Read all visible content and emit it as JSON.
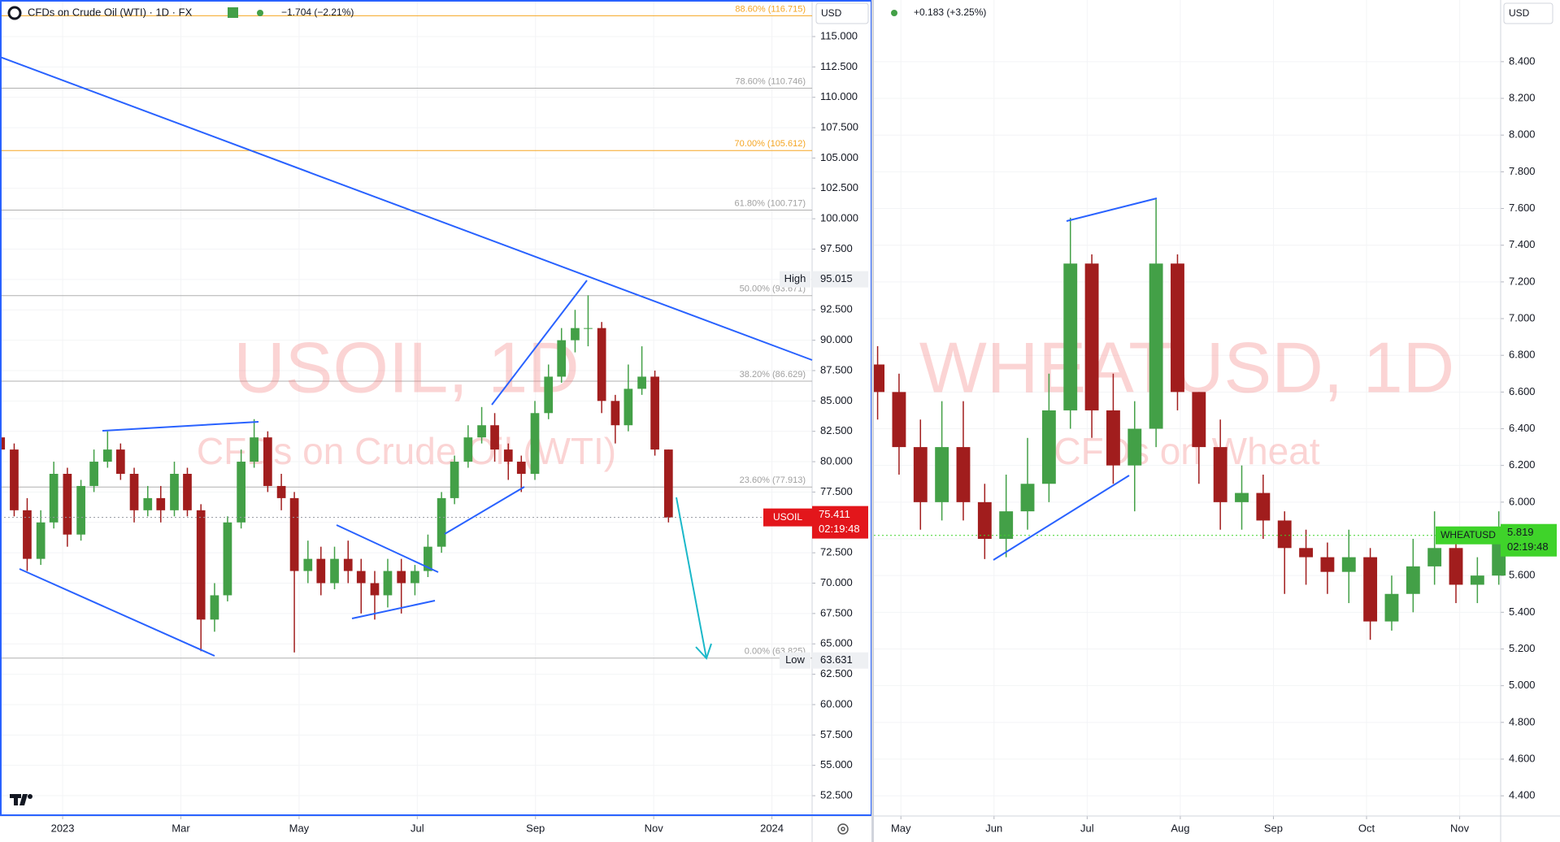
{
  "chart_data": [
    {
      "type": "candlestick",
      "symbol": "USOIL",
      "title": "CFDs on Crude Oil (WTI) · 1D · FX",
      "change": "−1.704 (−2.21%)",
      "currency": "USD",
      "watermark": "USOIL, 1D",
      "watermark_sub": "CFDs on Crude Oil (WTI)",
      "up_color": "#43a047",
      "down_color": "#a11d1d",
      "tag_color": "#e3161b",
      "grid": true,
      "xlim": [
        -1.06,
        12.68
      ],
      "ylim": [
        50.83,
        118.01
      ],
      "xticks": [
        {
          "value": 0,
          "label": "2023"
        },
        {
          "value": 2,
          "label": "Mar"
        },
        {
          "value": 4,
          "label": "May"
        },
        {
          "value": 6,
          "label": "Jul"
        },
        {
          "value": 8,
          "label": "Sep"
        },
        {
          "value": 10,
          "label": "Nov"
        },
        {
          "value": 12,
          "label": "2024"
        }
      ],
      "yticks": [
        {
          "value": 52.5,
          "label": "52.500"
        },
        {
          "value": 55,
          "label": "55.000"
        },
        {
          "value": 57.5,
          "label": "57.500"
        },
        {
          "value": 60,
          "label": "60.000"
        },
        {
          "value": 62.5,
          "label": "62.500"
        },
        {
          "value": 65,
          "label": "65.000"
        },
        {
          "value": 67.5,
          "label": "67.500"
        },
        {
          "value": 70,
          "label": "70.000"
        },
        {
          "value": 72.5,
          "label": "72.500"
        },
        {
          "value": 75,
          "label": "75.000"
        },
        {
          "value": 77.5,
          "label": "77.500"
        },
        {
          "value": 80,
          "label": "80.000"
        },
        {
          "value": 82.5,
          "label": "82.500"
        },
        {
          "value": 85,
          "label": "85.000"
        },
        {
          "value": 87.5,
          "label": "87.500"
        },
        {
          "value": 90,
          "label": "90.000"
        },
        {
          "value": 92.5,
          "label": "92.500"
        },
        {
          "value": 95,
          "label": "95.000"
        },
        {
          "value": 97.5,
          "label": "97.500"
        },
        {
          "value": 100,
          "label": "100.000"
        },
        {
          "value": 102.5,
          "label": "102.500"
        },
        {
          "value": 105,
          "label": "105.000"
        },
        {
          "value": 107.5,
          "label": "107.500"
        },
        {
          "value": 110,
          "label": "110.000"
        },
        {
          "value": 112.5,
          "label": "112.500"
        },
        {
          "value": 115,
          "label": "115.000"
        }
      ],
      "fib_levels": [
        {
          "value": 116.715,
          "label": "88.60% (116.715)",
          "color": "#f5a623"
        },
        {
          "value": 110.746,
          "label": "78.60% (110.746)",
          "color": "#b0b0b0"
        },
        {
          "value": 105.612,
          "label": "70.00% (105.612)",
          "color": "#f5a623"
        },
        {
          "value": 100.717,
          "label": "61.80% (100.717)",
          "color": "#b0b0b0"
        },
        {
          "value": 93.671,
          "label": "50.00% (93.671)",
          "color": "#b0b0b0"
        },
        {
          "value": 86.629,
          "label": "38.20% (86.629)",
          "color": "#b0b0b0"
        },
        {
          "value": 77.913,
          "label": "23.60% (77.913)",
          "color": "#b0b0b0"
        },
        {
          "value": 63.825,
          "label": "0.00% (63.825)",
          "color": "#b0b0b0"
        }
      ],
      "high_marker": {
        "label": "High",
        "value": 95.015
      },
      "low_marker": {
        "label": "Low",
        "value": 63.631
      },
      "last_price": 75.411,
      "countdown": "02:19:48",
      "x": [
        -1.05,
        -0.82,
        -0.6,
        -0.37,
        -0.15,
        0.08,
        0.31,
        0.53,
        0.76,
        0.98,
        1.21,
        1.44,
        1.66,
        1.89,
        2.11,
        2.34,
        2.57,
        2.79,
        3.02,
        3.24,
        3.47,
        3.7,
        3.92,
        4.15,
        4.37,
        4.6,
        4.83,
        5.05,
        5.28,
        5.5,
        5.73,
        5.96,
        6.18,
        6.41,
        6.63,
        6.86,
        7.09,
        7.31,
        7.54,
        7.76,
        7.99,
        8.22,
        8.44,
        8.67,
        8.89,
        9.12,
        9.35,
        9.57,
        9.8,
        10.02,
        10.25
      ],
      "open": [
        82,
        81,
        76,
        72,
        75,
        79,
        74,
        78,
        80,
        81,
        79,
        76,
        77,
        76,
        79,
        76,
        67,
        69,
        75,
        80,
        82,
        78,
        77,
        71,
        72,
        70,
        72,
        71,
        70,
        69,
        71,
        70,
        71,
        73,
        77,
        80,
        82,
        83,
        81,
        80,
        79,
        84,
        87,
        90,
        91,
        91,
        85,
        83,
        86,
        87,
        81
      ],
      "high": [
        83.5,
        81.5,
        77,
        76,
        80,
        79.5,
        78.5,
        81,
        82.5,
        81.5,
        79.5,
        78,
        78,
        80,
        79.5,
        76.5,
        70,
        75.5,
        81,
        83.5,
        82.5,
        79,
        77.5,
        73.5,
        73,
        73,
        73.5,
        72,
        71,
        72,
        72,
        71.5,
        74,
        77.5,
        80.5,
        83,
        84.5,
        84,
        81.5,
        80.5,
        85,
        88,
        91,
        92.5,
        93.7,
        91.5,
        85.5,
        88,
        89.5,
        87.5,
        81
      ],
      "low": [
        80,
        75.5,
        71,
        71.5,
        74.5,
        73,
        73.5,
        77.5,
        79.5,
        78.5,
        75,
        75.5,
        75,
        75.5,
        75.5,
        64.4,
        66,
        68.5,
        74.5,
        79.5,
        77.5,
        76,
        64.3,
        70,
        69,
        69.5,
        70,
        67.5,
        67,
        68,
        67.5,
        69,
        70.5,
        72.5,
        76.5,
        79.5,
        81.5,
        80,
        78.5,
        77.5,
        78.5,
        83.5,
        86.5,
        89,
        89.5,
        84,
        81.5,
        82.5,
        85.5,
        80.5,
        75
      ],
      "close": [
        81,
        76,
        72,
        75,
        79,
        74,
        78,
        80,
        81,
        79,
        76,
        77,
        76,
        79,
        76,
        67,
        69,
        75,
        80,
        82,
        78,
        77,
        71,
        72,
        70,
        72,
        71,
        70,
        69,
        71,
        70,
        71,
        73,
        77,
        80,
        82,
        83,
        81,
        80,
        79,
        84,
        87,
        90,
        91,
        91,
        85,
        83,
        86,
        87,
        81,
        75.4
      ]
    },
    {
      "type": "candlestick",
      "symbol": "WHEATUSD",
      "change": "+0.183 (+3.25%)",
      "currency": "USD",
      "watermark": "WHEATUSD, 1D",
      "watermark_sub": "CFDs on Wheat",
      "up_color": "#43a047",
      "down_color": "#a11d1d",
      "tag_color": "#3fd32a",
      "grid": true,
      "xlim": [
        3.71,
        10.44
      ],
      "ylim": [
        4.29,
        8.736
      ],
      "xticks": [
        {
          "value": 4,
          "label": "May"
        },
        {
          "value": 5,
          "label": "Jun"
        },
        {
          "value": 6,
          "label": "Jul"
        },
        {
          "value": 7,
          "label": "Aug"
        },
        {
          "value": 8,
          "label": "Sep"
        },
        {
          "value": 9,
          "label": "Oct"
        },
        {
          "value": 10,
          "label": "Nov"
        }
      ],
      "yticks": [
        {
          "value": 4.4,
          "label": "4.400"
        },
        {
          "value": 4.6,
          "label": "4.600"
        },
        {
          "value": 4.8,
          "label": "4.800"
        },
        {
          "value": 5,
          "label": "5.000"
        },
        {
          "value": 5.2,
          "label": "5.200"
        },
        {
          "value": 5.4,
          "label": "5.400"
        },
        {
          "value": 5.6,
          "label": "5.600"
        },
        {
          "value": 5.8,
          "label": "5.800"
        },
        {
          "value": 6,
          "label": "6.000"
        },
        {
          "value": 6.2,
          "label": "6.200"
        },
        {
          "value": 6.4,
          "label": "6.400"
        },
        {
          "value": 6.6,
          "label": "6.600"
        },
        {
          "value": 6.8,
          "label": "6.800"
        },
        {
          "value": 7,
          "label": "7.000"
        },
        {
          "value": 7.2,
          "label": "7.200"
        },
        {
          "value": 7.4,
          "label": "7.400"
        },
        {
          "value": 7.6,
          "label": "7.600"
        },
        {
          "value": 7.8,
          "label": "7.800"
        },
        {
          "value": 8,
          "label": "8.000"
        },
        {
          "value": 8.2,
          "label": "8.200"
        },
        {
          "value": 8.4,
          "label": "8.400"
        }
      ],
      "last_price": 5.819,
      "countdown": "02:19:48",
      "x": [
        3.75,
        3.98,
        4.21,
        4.44,
        4.67,
        4.9,
        5.13,
        5.36,
        5.59,
        5.82,
        6.05,
        6.28,
        6.51,
        6.74,
        6.97,
        7.2,
        7.43,
        7.66,
        7.89,
        8.12,
        8.35,
        8.58,
        8.81,
        9.04,
        9.27,
        9.5,
        9.73,
        9.96,
        10.19,
        10.42
      ],
      "open": [
        6.75,
        6.6,
        6.3,
        6.0,
        6.3,
        6.0,
        5.8,
        5.95,
        6.1,
        6.5,
        7.3,
        6.5,
        6.2,
        6.4,
        7.3,
        6.6,
        6.3,
        6.0,
        6.05,
        5.9,
        5.75,
        5.7,
        5.62,
        5.7,
        5.35,
        5.5,
        5.65,
        5.75,
        5.55,
        5.6
      ],
      "high": [
        6.85,
        6.7,
        6.45,
        6.55,
        6.55,
        6.1,
        6.15,
        6.35,
        6.7,
        7.55,
        7.35,
        6.7,
        6.55,
        7.65,
        7.35,
        6.6,
        6.45,
        6.2,
        6.15,
        5.95,
        5.85,
        5.78,
        5.85,
        5.75,
        5.6,
        5.8,
        5.95,
        5.85,
        5.7,
        5.95
      ],
      "low": [
        6.45,
        6.15,
        5.85,
        5.9,
        5.9,
        5.69,
        5.7,
        5.85,
        6.0,
        6.4,
        6.35,
        6.1,
        5.95,
        6.3,
        6.5,
        6.1,
        5.85,
        5.85,
        5.8,
        5.5,
        5.55,
        5.5,
        5.45,
        5.25,
        5.3,
        5.4,
        5.55,
        5.45,
        5.45,
        5.55
      ],
      "close": [
        6.6,
        6.3,
        6.0,
        6.3,
        6.0,
        5.8,
        5.95,
        6.1,
        6.5,
        7.3,
        6.5,
        6.2,
        6.4,
        7.3,
        6.6,
        6.3,
        6.0,
        6.05,
        5.9,
        5.75,
        5.7,
        5.62,
        5.7,
        5.35,
        5.5,
        5.65,
        5.75,
        5.55,
        5.6,
        5.819
      ]
    }
  ]
}
